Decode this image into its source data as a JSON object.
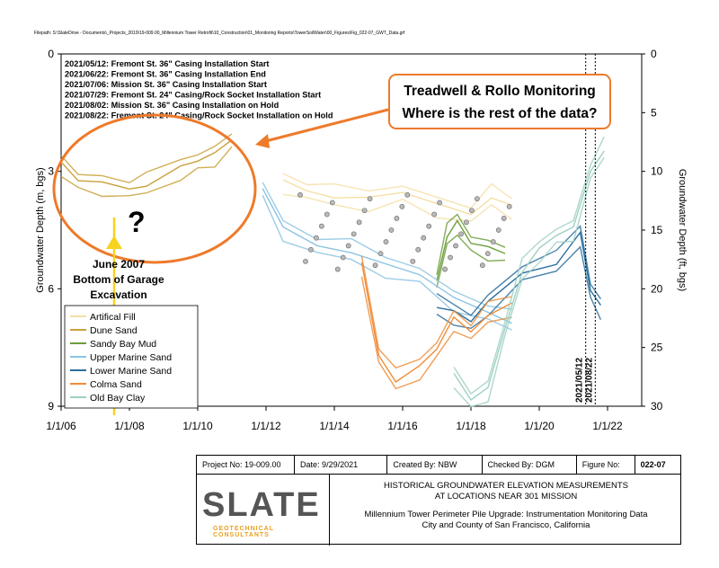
{
  "filepath": "Filepath: S:\\SlateDrive - Documents\\_Projects_2019\\19-009.00_Millennium Tower Retrofit\\10_Construction\\01_Monitoring Reports\\TowerSoilWater\\00_Figures\\Fig_022-07_GWT_Data.grf",
  "chart_data": {
    "type": "line",
    "title": "",
    "xlabel": "",
    "ylabel": "Groundwater Depth (m, bgs)",
    "ylabel_right": "Groundwater Depth (ft, bgs)",
    "xlim": [
      "2006-01-01",
      "2022-12-31"
    ],
    "ylim_m": [
      0,
      9
    ],
    "ylim_ft": [
      0,
      30
    ],
    "y_inverted": true,
    "x_ticks": [
      "1/1/06",
      "1/1/08",
      "1/1/10",
      "1/1/12",
      "1/1/14",
      "1/1/16",
      "1/1/18",
      "1/1/20",
      "1/1/22"
    ],
    "y_ticks_m": [
      "0",
      "3",
      "6",
      "9"
    ],
    "y_ticks_ft": [
      "0",
      "5",
      "10",
      "15",
      "20",
      "25",
      "30"
    ],
    "legend_position": "bottom-left",
    "series": [
      {
        "name": "Artifical Fill",
        "color": "#f4dfa6",
        "values": [
          [
            2012.5,
            3.3
          ],
          [
            2013.2,
            3.5
          ],
          [
            2014,
            3.6
          ],
          [
            2015,
            3.7
          ],
          [
            2016,
            3.5
          ],
          [
            2017,
            3.9
          ],
          [
            2018,
            4.1
          ],
          [
            2018.6,
            3.6
          ],
          [
            2019.2,
            3.9
          ]
        ]
      },
      {
        "name": "Dune Sand",
        "color": "#c9a139",
        "values": [
          [
            2006.0,
            2.8
          ],
          [
            2006.5,
            3.2
          ],
          [
            2007.2,
            3.35
          ],
          [
            2008.0,
            3.45
          ],
          [
            2008.5,
            3.3
          ],
          [
            2009.5,
            2.9
          ],
          [
            2010.0,
            2.7
          ],
          [
            2010.5,
            2.6
          ],
          [
            2011.0,
            2.2
          ]
        ]
      },
      {
        "name": "Sandy Bay Mud",
        "color": "#6c9e3c",
        "values": [
          [
            2017.0,
            5.8
          ],
          [
            2017.3,
            4.6
          ],
          [
            2017.6,
            4.3
          ],
          [
            2018.0,
            4.8
          ],
          [
            2018.5,
            5.0
          ],
          [
            2019.0,
            5.1
          ]
        ]
      },
      {
        "name": "Upper Marine Sand",
        "color": "#8cc3e2",
        "values": [
          [
            2011.9,
            3.4
          ],
          [
            2012.5,
            4.5
          ],
          [
            2013.5,
            4.9
          ],
          [
            2014.5,
            5.0
          ],
          [
            2015.5,
            5.4
          ],
          [
            2016.5,
            5.6
          ],
          [
            2017.5,
            6.3
          ],
          [
            2018.5,
            6.6
          ],
          [
            2019.2,
            6.8
          ]
        ]
      },
      {
        "name": "Lower Marine Sand",
        "color": "#2b6f9e",
        "values": [
          [
            2017.0,
            6.4
          ],
          [
            2017.5,
            6.6
          ],
          [
            2018.0,
            6.8
          ],
          [
            2018.5,
            6.4
          ],
          [
            2019.5,
            5.6
          ],
          [
            2020.5,
            5.3
          ],
          [
            2021.2,
            4.6
          ],
          [
            2021.5,
            6.0
          ],
          [
            2021.8,
            6.5
          ]
        ]
      },
      {
        "name": "Colma Sand",
        "color": "#ef8d3a",
        "values": [
          [
            2014.8,
            5.4
          ],
          [
            2015.3,
            7.7
          ],
          [
            2015.8,
            8.3
          ],
          [
            2016.5,
            8.0
          ],
          [
            2017.0,
            7.5
          ],
          [
            2017.5,
            6.8
          ],
          [
            2018.0,
            7.1
          ],
          [
            2018.5,
            6.6
          ],
          [
            2019.2,
            6.4
          ]
        ]
      },
      {
        "name": "Old Bay Clay",
        "color": "#9fd0c4",
        "values": [
          [
            2017.5,
            8.2
          ],
          [
            2018.0,
            8.8
          ],
          [
            2018.5,
            8.6
          ],
          [
            2019.0,
            7.0
          ],
          [
            2019.5,
            5.5
          ],
          [
            2020.0,
            5.0
          ],
          [
            2020.5,
            4.6
          ],
          [
            2021.0,
            4.5
          ],
          [
            2021.5,
            3.0
          ],
          [
            2021.9,
            2.4
          ]
        ]
      }
    ],
    "event_lines": [
      {
        "label": "2021/05/12",
        "x": 2021.36
      },
      {
        "label": "2021/08/22",
        "x": 2021.64
      }
    ],
    "events_text": [
      "2021/05/12: Fremont St. 36\" Casing Installation Start",
      "2021/06/22: Fremont St. 36\" Casing Installation End",
      "2021/07/06: Mission St. 36\" Casing Installation Start",
      "2021/07/29: Fremont St. 24\" Casing/Rock Socket Installation Start",
      "2021/08/02: Mission St. 36\" Casing Installation on Hold",
      "2021/08/22: Fremont St. 24\" Casing/Rock Socket Installation on Hold"
    ]
  },
  "annotations": {
    "callout_line1": "Treadwell & Rollo Monitoring",
    "callout_line2": "Where is the rest of the data?",
    "question_mark": "?",
    "june_line1": "June 2007",
    "june_line2": "Bottom of Garage",
    "june_line3": "Excavation",
    "orange": "#ee7a2a",
    "yellow": "#f7d21f"
  },
  "title_block": {
    "project": "Project No: 19-009.00",
    "date": "Date:  9/29/2021",
    "created": "Created By:  NBW",
    "checked": "Checked By:  DGM",
    "figure_label": "Figure No:",
    "figure_no": "022-07",
    "logo_text": "SLATE",
    "logo_sub": "GEOTECHNICAL CONSULTANTS",
    "title1": "HISTORICAL GROUNDWATER ELEVATION MEASUREMENTS",
    "title2": "AT LOCATIONS NEAR 301 MISSION",
    "desc1": "Millennium Tower Perimeter Pile Upgrade: Instrumentation Monitoring Data",
    "desc2": "City and County of San Francisco, California"
  }
}
